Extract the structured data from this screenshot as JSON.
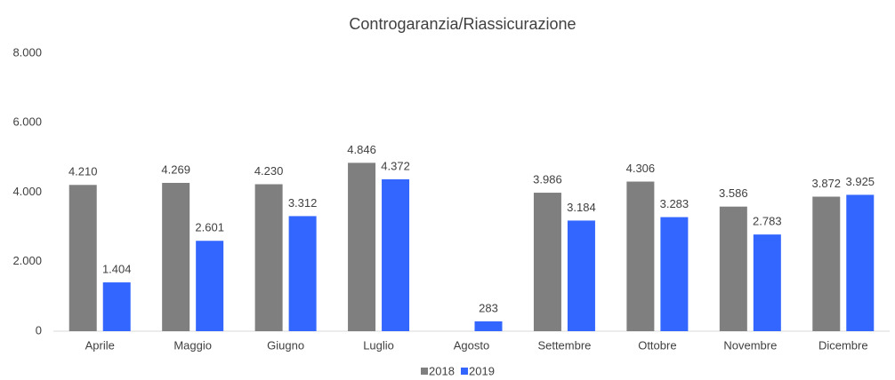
{
  "chart_data": {
    "type": "bar",
    "title": "Controgaranzia/Riassicurazione",
    "categories": [
      "Aprile",
      "Maggio",
      "Giugno",
      "Luglio",
      "Agosto",
      "Settembre",
      "Ottobre",
      "Novembre",
      "Dicembre"
    ],
    "series": [
      {
        "name": "2018",
        "color": "#7f7f7f",
        "values": [
          4210,
          4269,
          4230,
          4846,
          null,
          3986,
          4306,
          3586,
          3872
        ],
        "value_labels": [
          "4.210",
          "4.269",
          "4.230",
          "4.846",
          null,
          "3.986",
          "4.306",
          "3.586",
          "3.872"
        ]
      },
      {
        "name": "2019",
        "color": "#3366ff",
        "values": [
          1404,
          2601,
          3312,
          4372,
          283,
          3184,
          3283,
          2783,
          3925
        ],
        "value_labels": [
          "1.404",
          "2.601",
          "3.312",
          "4.372",
          "283",
          "3.184",
          "3.283",
          "2.783",
          "3.925"
        ]
      }
    ],
    "ylim": [
      0,
      8000
    ],
    "yticks": [
      0,
      {
        "value": 2000,
        "label": "2.000"
      },
      {
        "value": 4000,
        "label": "4.000"
      },
      {
        "value": 6000,
        "label": "6.000"
      },
      {
        "value": 8000,
        "label": "8.000"
      }
    ],
    "grid": false,
    "legend": "bottom"
  }
}
